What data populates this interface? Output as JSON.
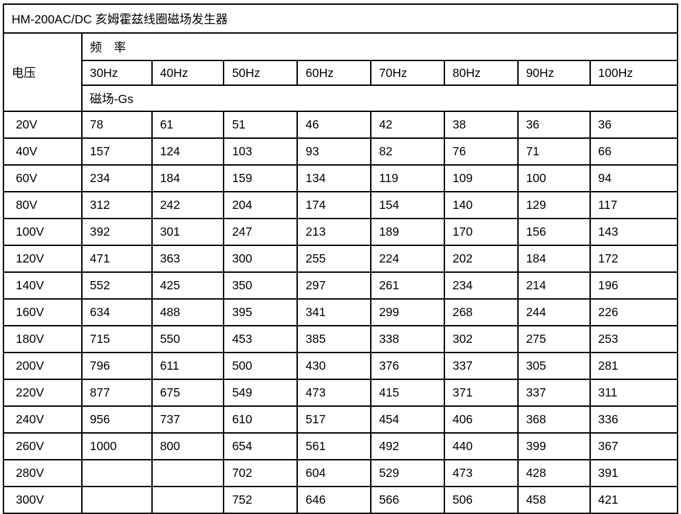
{
  "title": "HM-200AC/DC 亥姆霍兹线圈磁场发生器",
  "table": {
    "voltage_header": "电压",
    "frequency_header": "频　率",
    "field_unit_header": "磁场-Gs",
    "frequencies": [
      "30Hz",
      "40Hz",
      "50Hz",
      "60Hz",
      "70Hz",
      "80Hz",
      "90Hz",
      "100Hz"
    ],
    "rows": [
      {
        "voltage": "20V",
        "values": [
          "78",
          "61",
          "51",
          "46",
          "42",
          "38",
          "36",
          "36"
        ]
      },
      {
        "voltage": "40V",
        "values": [
          "157",
          "124",
          "103",
          "93",
          "82",
          "76",
          "71",
          "66"
        ]
      },
      {
        "voltage": "60V",
        "values": [
          "234",
          "184",
          "159",
          "134",
          "119",
          "109",
          "100",
          "94"
        ]
      },
      {
        "voltage": "80V",
        "values": [
          "312",
          "242",
          "204",
          "174",
          "154",
          "140",
          "129",
          "117"
        ]
      },
      {
        "voltage": "100V",
        "values": [
          "392",
          "301",
          "247",
          "213",
          "189",
          "170",
          "156",
          "143"
        ]
      },
      {
        "voltage": "120V",
        "values": [
          "471",
          "363",
          "300",
          "255",
          "224",
          "202",
          "184",
          "172"
        ]
      },
      {
        "voltage": "140V",
        "values": [
          "552",
          "425",
          "350",
          "297",
          "261",
          "234",
          "214",
          "196"
        ]
      },
      {
        "voltage": "160V",
        "values": [
          "634",
          "488",
          "395",
          "341",
          "299",
          "268",
          "244",
          "226"
        ]
      },
      {
        "voltage": "180V",
        "values": [
          "715",
          "550",
          "453",
          "385",
          "338",
          "302",
          "275",
          "253"
        ]
      },
      {
        "voltage": "200V",
        "values": [
          "796",
          "611",
          "500",
          "430",
          "376",
          "337",
          "305",
          "281"
        ]
      },
      {
        "voltage": "220V",
        "values": [
          "877",
          "675",
          "549",
          "473",
          "415",
          "371",
          "337",
          "311"
        ]
      },
      {
        "voltage": "240V",
        "values": [
          "956",
          "737",
          "610",
          "517",
          "454",
          "406",
          "368",
          "336"
        ]
      },
      {
        "voltage": "260V",
        "values": [
          "1000",
          "800",
          "654",
          "561",
          "492",
          "440",
          "399",
          "367"
        ]
      },
      {
        "voltage": "280V",
        "values": [
          "",
          "",
          "702",
          "604",
          "529",
          "473",
          "428",
          "391"
        ]
      },
      {
        "voltage": "300V",
        "values": [
          "",
          "",
          "752",
          "646",
          "566",
          "506",
          "458",
          "421"
        ]
      }
    ]
  }
}
